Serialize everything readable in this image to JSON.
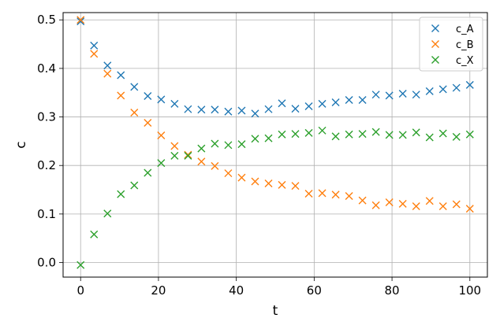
{
  "chart_data": {
    "type": "scatter",
    "title": "",
    "xlabel": "t",
    "ylabel": "c",
    "xlim": [
      -4.5,
      104.5
    ],
    "ylim": [
      -0.03,
      0.515
    ],
    "xticks": [
      0,
      20,
      40,
      60,
      80,
      100
    ],
    "yticks": [
      0.0,
      0.1,
      0.2,
      0.3,
      0.4,
      0.5
    ],
    "xtick_labels": [
      "0",
      "20",
      "40",
      "60",
      "80",
      "100"
    ],
    "ytick_labels": [
      "0.0",
      "0.1",
      "0.2",
      "0.3",
      "0.4",
      "0.5"
    ],
    "grid": true,
    "legend_position": "top-right",
    "marker": "x",
    "x": [
      0,
      3.45,
      6.9,
      10.34,
      13.79,
      17.24,
      20.69,
      24.14,
      27.59,
      31.03,
      34.48,
      37.93,
      41.38,
      44.83,
      48.28,
      51.72,
      55.17,
      58.62,
      62.07,
      65.52,
      68.97,
      72.41,
      75.86,
      79.31,
      82.76,
      86.21,
      89.66,
      93.1,
      96.55,
      100
    ],
    "series": [
      {
        "name": "c_A",
        "color": "#1f77b4",
        "values": [
          0.497,
          0.447,
          0.406,
          0.386,
          0.362,
          0.343,
          0.336,
          0.327,
          0.316,
          0.315,
          0.315,
          0.311,
          0.313,
          0.307,
          0.316,
          0.328,
          0.317,
          0.322,
          0.327,
          0.33,
          0.335,
          0.335,
          0.346,
          0.344,
          0.348,
          0.346,
          0.353,
          0.357,
          0.36,
          0.366
        ]
      },
      {
        "name": "c_B",
        "color": "#ff7f0e",
        "values": [
          0.5,
          0.43,
          0.389,
          0.344,
          0.309,
          0.288,
          0.262,
          0.24,
          0.222,
          0.208,
          0.199,
          0.184,
          0.175,
          0.167,
          0.163,
          0.16,
          0.158,
          0.142,
          0.143,
          0.14,
          0.137,
          0.128,
          0.118,
          0.124,
          0.121,
          0.116,
          0.127,
          0.116,
          0.12,
          0.111
        ]
      },
      {
        "name": "c_X",
        "color": "#2ca02c",
        "values": [
          -0.005,
          0.058,
          0.101,
          0.141,
          0.159,
          0.185,
          0.205,
          0.22,
          0.22,
          0.235,
          0.245,
          0.242,
          0.244,
          0.255,
          0.256,
          0.264,
          0.265,
          0.267,
          0.272,
          0.26,
          0.264,
          0.265,
          0.269,
          0.263,
          0.263,
          0.268,
          0.258,
          0.266,
          0.259,
          0.264
        ]
      }
    ]
  }
}
